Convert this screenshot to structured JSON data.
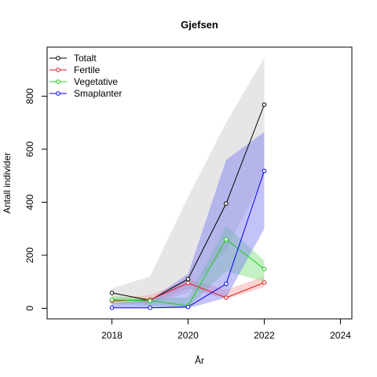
{
  "chart_data": {
    "type": "line",
    "title": "Gjefsen",
    "xlabel": "År",
    "ylabel": "Antall individer",
    "xlim": [
      2016.3,
      2024.3
    ],
    "ylim": [
      -40,
      985
    ],
    "xticks": [
      2018,
      2020,
      2022,
      2024
    ],
    "yticks": [
      0,
      200,
      400,
      600,
      800
    ],
    "grid": false,
    "legend_position": "top-left",
    "x": [
      2018,
      2019,
      2020,
      2021,
      2022
    ],
    "series": [
      {
        "name": "Totalt",
        "color": "#000000",
        "band_color": "#c8c8c8",
        "values": [
          58,
          30,
          110,
          395,
          768
        ],
        "lower": [
          35,
          15,
          60,
          220,
          500
        ],
        "upper": [
          75,
          120,
          420,
          700,
          945
        ]
      },
      {
        "name": "Fertile",
        "color": "#e31a1c",
        "band_color": "#f6a0a0",
        "values": [
          28,
          32,
          95,
          40,
          97
        ],
        "lower": [
          20,
          20,
          75,
          35,
          80
        ],
        "upper": [
          35,
          50,
          110,
          70,
          120
        ]
      },
      {
        "name": "Vegetative",
        "color": "#22cc22",
        "band_color": "#7be07b",
        "values": [
          32,
          28,
          10,
          260,
          148
        ],
        "lower": [
          15,
          10,
          5,
          140,
          100
        ],
        "upper": [
          45,
          40,
          40,
          310,
          180
        ]
      },
      {
        "name": "Smaplanter",
        "color": "#0000ee",
        "band_color": "#7b7bf5",
        "values": [
          2,
          2,
          5,
          92,
          518
        ],
        "lower": [
          0,
          0,
          0,
          40,
          300
        ],
        "upper": [
          20,
          30,
          130,
          560,
          665
        ]
      }
    ]
  }
}
